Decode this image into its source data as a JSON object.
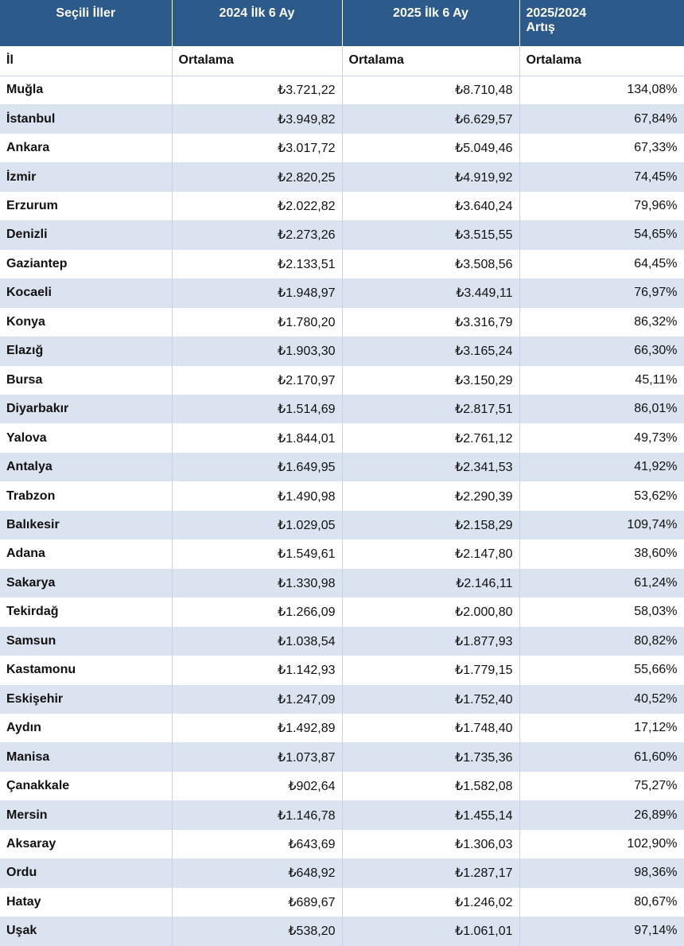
{
  "table": {
    "header": [
      "Seçili İller",
      "2024 İlk 6 Ay",
      "2025 İlk 6 Ay",
      "2025/2024\nArtış"
    ],
    "subheader": [
      "İl",
      "Ortalama",
      "Ortalama",
      "Ortalama"
    ],
    "rows": [
      [
        "Muğla",
        "₺3.721,22",
        "₺8.710,48",
        "134,08%"
      ],
      [
        "İstanbul",
        "₺3.949,82",
        "₺6.629,57",
        "67,84%"
      ],
      [
        "Ankara",
        "₺3.017,72",
        "₺5.049,46",
        "67,33%"
      ],
      [
        "İzmir",
        "₺2.820,25",
        "₺4.919,92",
        "74,45%"
      ],
      [
        "Erzurum",
        "₺2.022,82",
        "₺3.640,24",
        "79,96%"
      ],
      [
        "Denizli",
        "₺2.273,26",
        "₺3.515,55",
        "54,65%"
      ],
      [
        "Gaziantep",
        "₺2.133,51",
        "₺3.508,56",
        "64,45%"
      ],
      [
        "Kocaeli",
        "₺1.948,97",
        "₺3.449,11",
        "76,97%"
      ],
      [
        "Konya",
        "₺1.780,20",
        "₺3.316,79",
        "86,32%"
      ],
      [
        "Elazığ",
        "₺1.903,30",
        "₺3.165,24",
        "66,30%"
      ],
      [
        "Bursa",
        "₺2.170,97",
        "₺3.150,29",
        "45,11%"
      ],
      [
        "Diyarbakır",
        "₺1.514,69",
        "₺2.817,51",
        "86,01%"
      ],
      [
        "Yalova",
        "₺1.844,01",
        "₺2.761,12",
        "49,73%"
      ],
      [
        "Antalya",
        "₺1.649,95",
        "₺2.341,53",
        "41,92%"
      ],
      [
        "Trabzon",
        "₺1.490,98",
        "₺2.290,39",
        "53,62%"
      ],
      [
        "Balıkesir",
        "₺1.029,05",
        "₺2.158,29",
        "109,74%"
      ],
      [
        "Adana",
        "₺1.549,61",
        "₺2.147,80",
        "38,60%"
      ],
      [
        "Sakarya",
        "₺1.330,98",
        "₺2.146,11",
        "61,24%"
      ],
      [
        "Tekirdağ",
        "₺1.266,09",
        "₺2.000,80",
        "58,03%"
      ],
      [
        "Samsun",
        "₺1.038,54",
        "₺1.877,93",
        "80,82%"
      ],
      [
        "Kastamonu",
        "₺1.142,93",
        "₺1.779,15",
        "55,66%"
      ],
      [
        "Eskişehir",
        "₺1.247,09",
        "₺1.752,40",
        "40,52%"
      ],
      [
        "Aydın",
        "₺1.492,89",
        "₺1.748,40",
        "17,12%"
      ],
      [
        "Manisa",
        "₺1.073,87",
        "₺1.735,36",
        "61,60%"
      ],
      [
        "Çanakkale",
        "₺902,64",
        "₺1.582,08",
        "75,27%"
      ],
      [
        "Mersin",
        "₺1.146,78",
        "₺1.455,14",
        "26,89%"
      ],
      [
        "Aksaray",
        "₺643,69",
        "₺1.306,03",
        "102,90%"
      ],
      [
        "Ordu",
        "₺648,92",
        "₺1.287,17",
        "98,36%"
      ],
      [
        "Hatay",
        "₺689,67",
        "₺1.246,02",
        "80,67%"
      ],
      [
        "Uşak",
        "₺538,20",
        "₺1.061,01",
        "97,14%"
      ]
    ]
  }
}
